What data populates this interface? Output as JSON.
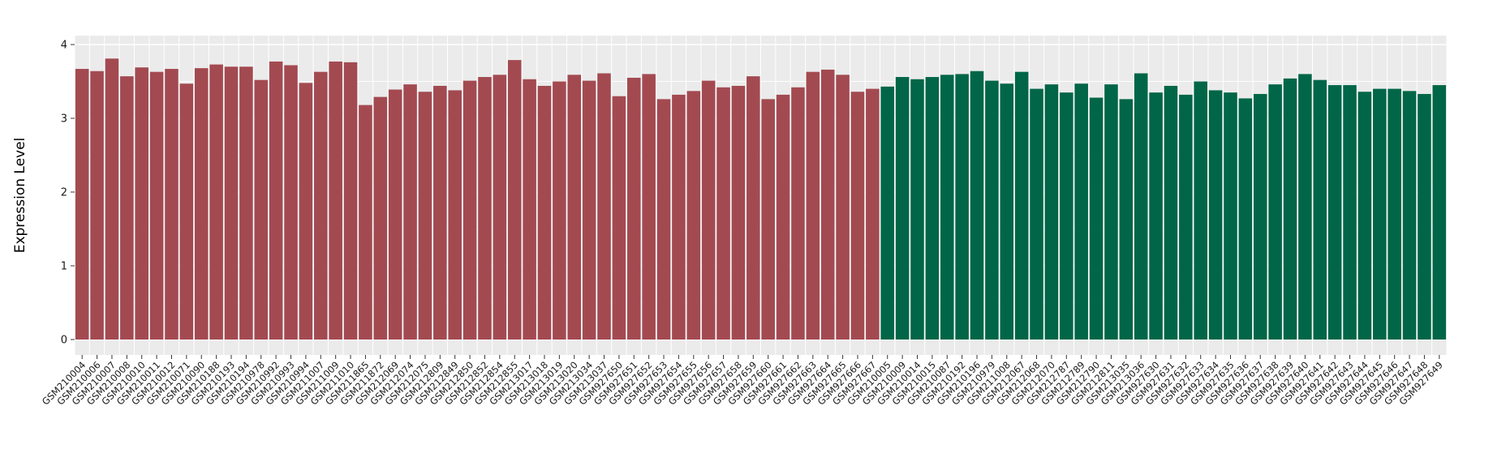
{
  "chart_data": {
    "type": "bar",
    "title": "",
    "xlabel": "",
    "ylabel": "Expression Level",
    "ylim": [
      0,
      4
    ],
    "yticks": [
      "0",
      "1",
      "2",
      "3",
      "4"
    ],
    "grid": "on",
    "legend": "none",
    "panel_background": "#EBEBEB",
    "gridline_color": "#FFFFFF",
    "tick_color": "#333333",
    "axis_text_color": "#1a1a1a",
    "groups": [
      {
        "color": "#A34A51",
        "start": 0,
        "count": 54
      },
      {
        "color": "#006647",
        "start": 54,
        "count": 38
      }
    ],
    "categories": [
      "GSM210004",
      "GSM210006",
      "GSM210007",
      "GSM210008",
      "GSM210010",
      "GSM210011",
      "GSM210012",
      "GSM210071",
      "GSM210090",
      "GSM210188",
      "GSM210193",
      "GSM210194",
      "GSM210978",
      "GSM210992",
      "GSM210993",
      "GSM210994",
      "GSM211007",
      "GSM211009",
      "GSM211010",
      "GSM211865",
      "GSM211872",
      "GSM212069",
      "GSM212074",
      "GSM212075",
      "GSM212809",
      "GSM212849",
      "GSM212850",
      "GSM212852",
      "GSM212854",
      "GSM212855",
      "GSM213017",
      "GSM213018",
      "GSM213019",
      "GSM213020",
      "GSM213034",
      "GSM213037",
      "GSM927650",
      "GSM927651",
      "GSM927652",
      "GSM927653",
      "GSM927654",
      "GSM927655",
      "GSM927656",
      "GSM927657",
      "GSM927658",
      "GSM927659",
      "GSM927660",
      "GSM927661",
      "GSM927662",
      "GSM927663",
      "GSM927664",
      "GSM927665",
      "GSM927666",
      "GSM927667",
      "GSM210005",
      "GSM210009",
      "GSM210014",
      "GSM210015",
      "GSM210087",
      "GSM210192",
      "GSM210196",
      "GSM210979",
      "GSM211008",
      "GSM212067",
      "GSM212068",
      "GSM212070",
      "GSM212787",
      "GSM212789",
      "GSM212790",
      "GSM212811",
      "GSM213035",
      "GSM213036",
      "GSM927630",
      "GSM927631",
      "GSM927632",
      "GSM927633",
      "GSM927634",
      "GSM927635",
      "GSM927636",
      "GSM927637",
      "GSM927638",
      "GSM927639",
      "GSM927640",
      "GSM927641",
      "GSM927642",
      "GSM927643",
      "GSM927644",
      "GSM927645",
      "GSM927646",
      "GSM927647",
      "GSM927648",
      "GSM927649"
    ],
    "values": [
      3.67,
      3.64,
      3.81,
      3.57,
      3.69,
      3.63,
      3.67,
      3.47,
      3.68,
      3.73,
      3.7,
      3.7,
      3.52,
      3.77,
      3.72,
      3.48,
      3.63,
      3.77,
      3.76,
      3.18,
      3.29,
      3.39,
      3.46,
      3.36,
      3.44,
      3.38,
      3.51,
      3.56,
      3.59,
      3.79,
      3.53,
      3.44,
      3.5,
      3.59,
      3.51,
      3.61,
      3.3,
      3.55,
      3.6,
      3.26,
      3.32,
      3.37,
      3.51,
      3.42,
      3.44,
      3.57,
      3.26,
      3.32,
      3.42,
      3.63,
      3.66,
      3.59,
      3.36,
      3.4,
      3.43,
      3.56,
      3.53,
      3.56,
      3.59,
      3.6,
      3.64,
      3.51,
      3.47,
      3.63,
      3.4,
      3.46,
      3.35,
      3.47,
      3.28,
      3.46,
      3.26,
      3.61,
      3.35,
      3.44,
      3.32,
      3.5,
      3.38,
      3.35,
      3.27,
      3.33,
      3.46,
      3.54,
      3.6,
      3.52,
      3.45,
      3.45,
      3.36,
      3.4,
      3.4,
      3.37,
      3.33,
      3.45
    ]
  }
}
